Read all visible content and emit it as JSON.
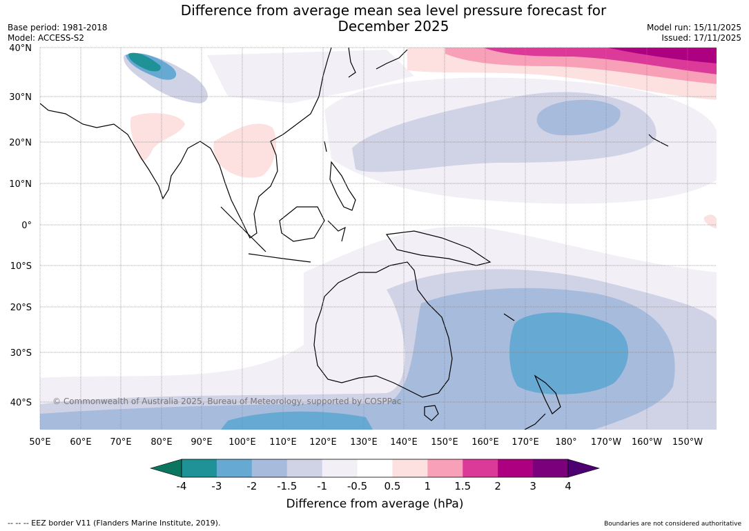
{
  "header": {
    "title_line1": "Difference from average mean sea level pressure forecast for",
    "title_line2": "December 2025",
    "base_period": "Base period: 1981-2018",
    "model": "Model: ACCESS-S2",
    "model_run": "Model run: 15/11/2025",
    "issued": "Issued: 17/11/2025"
  },
  "map": {
    "lat_labels": [
      "40°N",
      "30°N",
      "20°N",
      "10°N",
      "0°",
      "10°S",
      "20°S",
      "30°S",
      "40°S"
    ],
    "lon_labels": [
      "50°E",
      "60°E",
      "70°E",
      "80°E",
      "90°E",
      "100°E",
      "110°E",
      "120°E",
      "130°E",
      "140°E",
      "150°E",
      "160°E",
      "170°E",
      "180°",
      "170°W",
      "160°W",
      "150°W"
    ],
    "copyright": "© Commonwealth of Australia 2025, Bureau of Meteorology, supported by COSPPac"
  },
  "colorbar": {
    "title": "Difference from average (hPa)",
    "tick_labels": [
      "-4",
      "-3",
      "-2",
      "-1.5",
      "-1",
      "-0.5",
      "0.5",
      "1",
      "1.5",
      "2",
      "3",
      "4"
    ],
    "under_color": "#0c7560",
    "over_color": "#4d0070",
    "colors": [
      "#1e9296",
      "#66a9d2",
      "#a7bbdc",
      "#d0d2e6",
      "#f2eff6",
      "#ffffff",
      "#fde0e0",
      "#f8a0b8",
      "#dc3a98",
      "#ad0080",
      "#7b007c"
    ]
  },
  "footer": {
    "eez_note": "--  --  -- EEZ border V11 (Flanders Marine Institute, 2019).",
    "disclaimer": "Boundaries are not considered authoritative"
  }
}
